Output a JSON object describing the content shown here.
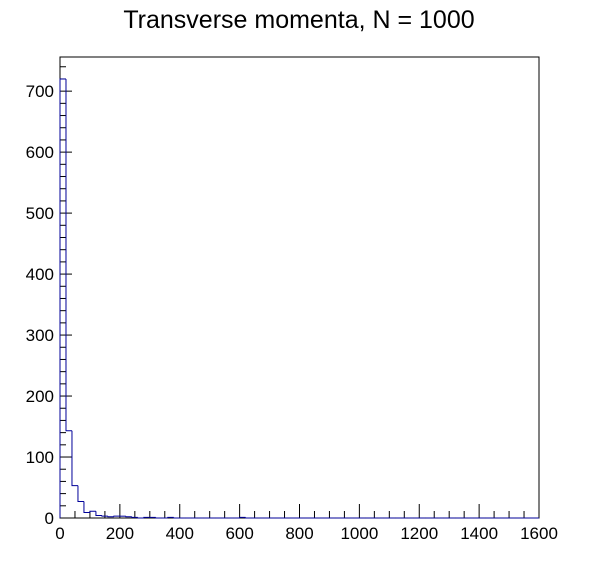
{
  "chart_data": {
    "type": "bar",
    "title": "Transverse momenta, N = 1000",
    "xlabel": "",
    "ylabel": "",
    "xlim": [
      0,
      1600
    ],
    "ylim": [
      0,
      756
    ],
    "x_ticks": [
      "0",
      "200",
      "400",
      "600",
      "800",
      "1000",
      "1200",
      "1400",
      "1600"
    ],
    "y_ticks": [
      "0",
      "100",
      "200",
      "300",
      "400",
      "500",
      "600",
      "700"
    ],
    "bin_width": 20,
    "values": [
      720,
      143,
      53,
      27,
      9,
      11,
      4,
      3,
      2,
      3,
      3,
      2,
      1,
      0,
      1,
      1,
      0,
      0,
      1,
      0,
      0,
      0,
      0,
      0,
      0,
      0,
      0,
      0,
      0,
      0,
      1,
      0,
      0,
      0,
      0,
      0,
      0,
      0,
      0,
      0,
      0,
      0,
      0,
      0,
      0,
      0,
      0,
      0,
      0,
      0,
      0,
      0,
      0,
      0,
      0,
      0,
      0,
      0,
      0,
      0,
      0,
      0,
      0,
      0,
      0,
      0,
      0,
      0,
      0,
      0,
      0,
      0,
      0,
      0,
      0,
      0,
      0,
      0,
      0,
      0
    ],
    "line_color": "#000099",
    "grid": false,
    "legend": false
  }
}
